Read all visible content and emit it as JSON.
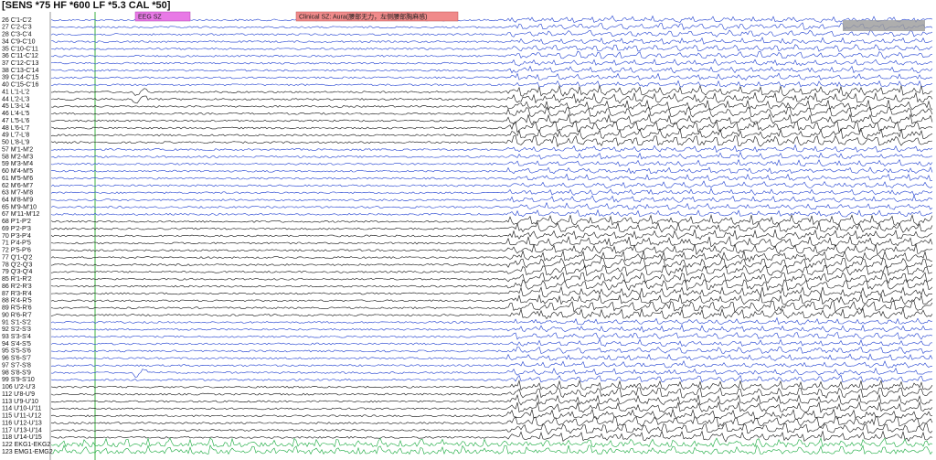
{
  "header": {
    "text": "[SENS *75  HF *600  LF *5.3  CAL *50]"
  },
  "annotations": [
    {
      "label": "EEG SZ"
    },
    {
      "label": "Clinical SZ: Aura(腰部无力，左侧腰部胸麻感)"
    }
  ],
  "channels": [
    {
      "label": "26 C'1-C'2",
      "color": "#1f3fd0"
    },
    {
      "label": "27 C'2-C'3",
      "color": "#1f3fd0"
    },
    {
      "label": "28 C'3-C'4",
      "color": "#1f3fd0"
    },
    {
      "label": "34 C'9-C'10",
      "color": "#1f3fd0"
    },
    {
      "label": "35 C'10-C'11",
      "color": "#1f3fd0"
    },
    {
      "label": "36 C'11-C'12",
      "color": "#1f3fd0"
    },
    {
      "label": "37 C'12-C'13",
      "color": "#1f3fd0"
    },
    {
      "label": "38 C'13-C'14",
      "color": "#1f3fd0"
    },
    {
      "label": "39 C'14-C'15",
      "color": "#1f3fd0"
    },
    {
      "label": "40 C'15-C'16",
      "color": "#1f3fd0"
    },
    {
      "label": "41 L'1-L'2",
      "color": "#111111"
    },
    {
      "label": "44 L'2-L'3",
      "color": "#111111"
    },
    {
      "label": "45 L'3-L'4",
      "color": "#111111"
    },
    {
      "label": "46 L'4-L'5",
      "color": "#111111"
    },
    {
      "label": "47 L'5-L'6",
      "color": "#111111"
    },
    {
      "label": "48 L'6-L'7",
      "color": "#111111"
    },
    {
      "label": "49 L'7-L'8",
      "color": "#111111"
    },
    {
      "label": "50 L'8-L'9",
      "color": "#111111"
    },
    {
      "label": "57 M'1-M'2",
      "color": "#1f3fd0"
    },
    {
      "label": "58 M'2-M'3",
      "color": "#1f3fd0"
    },
    {
      "label": "59 M'3-M'4",
      "color": "#1f3fd0"
    },
    {
      "label": "60 M'4-M'5",
      "color": "#1f3fd0"
    },
    {
      "label": "61 M'5-M'6",
      "color": "#1f3fd0"
    },
    {
      "label": "62 M'6-M'7",
      "color": "#1f3fd0"
    },
    {
      "label": "63 M'7-M'8",
      "color": "#1f3fd0"
    },
    {
      "label": "64 M'8-M'9",
      "color": "#1f3fd0"
    },
    {
      "label": "65 M'9-M'10",
      "color": "#1f3fd0"
    },
    {
      "label": "67 M'11-M'12",
      "color": "#1f3fd0"
    },
    {
      "label": "68 P'1-P'2",
      "color": "#111111"
    },
    {
      "label": "69 P'2-P'3",
      "color": "#111111"
    },
    {
      "label": "70 P'3-P'4",
      "color": "#111111"
    },
    {
      "label": "71 P'4-P'5",
      "color": "#111111"
    },
    {
      "label": "72 P'5-P'6",
      "color": "#111111"
    },
    {
      "label": "77 Q'1-Q'2",
      "color": "#111111"
    },
    {
      "label": "78 Q'2-Q'3",
      "color": "#111111"
    },
    {
      "label": "79 Q'3-Q'4",
      "color": "#111111"
    },
    {
      "label": "85 R'1-R'2",
      "color": "#111111"
    },
    {
      "label": "86 R'2-R'3",
      "color": "#111111"
    },
    {
      "label": "87 R'3-R'4",
      "color": "#111111"
    },
    {
      "label": "88 R'4-R'5",
      "color": "#111111"
    },
    {
      "label": "89 R'5-R'6",
      "color": "#111111"
    },
    {
      "label": "90 R'6-R'7",
      "color": "#111111"
    },
    {
      "label": "91 S'1-S'2",
      "color": "#1f3fd0"
    },
    {
      "label": "92 S'2-S'3",
      "color": "#1f3fd0"
    },
    {
      "label": "93 S'3-S'4",
      "color": "#1f3fd0"
    },
    {
      "label": "94 S'4-S'5",
      "color": "#1f3fd0"
    },
    {
      "label": "95 S'5-S'6",
      "color": "#1f3fd0"
    },
    {
      "label": "96 S'6-S'7",
      "color": "#1f3fd0"
    },
    {
      "label": "97 S'7-S'8",
      "color": "#1f3fd0"
    },
    {
      "label": "98 S'8-S'9",
      "color": "#1f3fd0"
    },
    {
      "label": "99 S'9-S'10",
      "color": "#1f3fd0"
    },
    {
      "label": "106 U'2-U'3",
      "color": "#111111"
    },
    {
      "label": "112 U'8-U'9",
      "color": "#111111"
    },
    {
      "label": "113 U'9-U'10",
      "color": "#111111"
    },
    {
      "label": "114 U'10-U'11",
      "color": "#111111"
    },
    {
      "label": "115 U'11-U'12",
      "color": "#111111"
    },
    {
      "label": "116 U'12-U'13",
      "color": "#111111"
    },
    {
      "label": "117 U'13-U'14",
      "color": "#111111"
    },
    {
      "label": "118 U'14-U'15",
      "color": "#111111"
    },
    {
      "label": "122 EKG1-EKG2",
      "color": "#14a83a"
    },
    {
      "label": "123 EMG1-EMG2",
      "color": "#14a83a"
    }
  ]
}
